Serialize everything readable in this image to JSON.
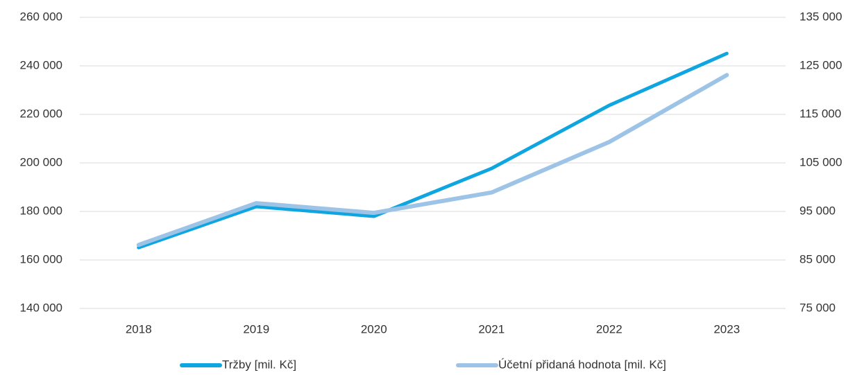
{
  "chart_data": {
    "type": "line",
    "categories": [
      "2018",
      "2019",
      "2020",
      "2021",
      "2022",
      "2023"
    ],
    "series": [
      {
        "name": "Tržby [mil. Kč]",
        "color": "#0ea5e0",
        "axis": "y",
        "values": [
          165100,
          182000,
          178000,
          197700,
          223700,
          245100
        ]
      },
      {
        "name": "Účetní přidaná hodnota [mil. Kč]",
        "color": "#9dc3e6",
        "axis": "y2",
        "values": [
          88100,
          96700,
          94700,
          98900,
          109300,
          123100
        ]
      }
    ],
    "ylim": [
      140000,
      260000
    ],
    "yticks": [
      {
        "value": 140000,
        "label": "140 000"
      },
      {
        "value": 160000,
        "label": "160 000"
      },
      {
        "value": 180000,
        "label": "180 000"
      },
      {
        "value": 200000,
        "label": "200 000"
      },
      {
        "value": 220000,
        "label": "220 000"
      },
      {
        "value": 240000,
        "label": "240 000"
      },
      {
        "value": 260000,
        "label": "260 000"
      }
    ],
    "y2lim": [
      75000,
      135000
    ],
    "y2ticks": [
      {
        "value": 75000,
        "label": "75 000"
      },
      {
        "value": 85000,
        "label": "85 000"
      },
      {
        "value": 95000,
        "label": "95 000"
      },
      {
        "value": 105000,
        "label": "105 000"
      },
      {
        "value": 115000,
        "label": "115 000"
      },
      {
        "value": 125000,
        "label": "125 000"
      },
      {
        "value": 135000,
        "label": "135 000"
      }
    ],
    "grid": true,
    "legend": "bottom"
  }
}
